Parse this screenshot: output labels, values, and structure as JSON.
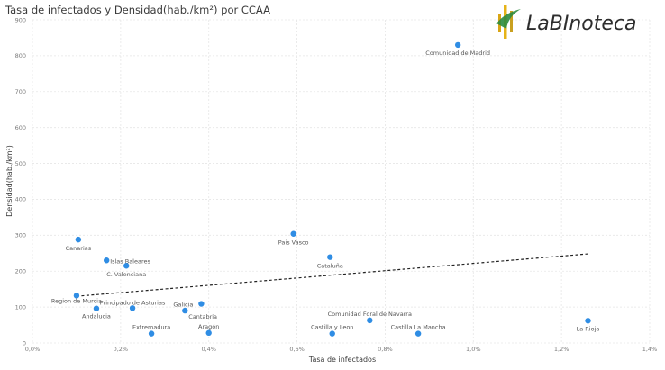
{
  "chart_data": {
    "type": "scatter",
    "title": "Tasa de infectados y Densidad(hab./km²) por CCAA",
    "xlabel": "Tasa de infectados",
    "ylabel": "Densidad(hab./km²)",
    "xlim": [
      0,
      1.4
    ],
    "ylim": [
      0,
      900
    ],
    "x_unit": "%",
    "x_ticks": [
      "0,0%",
      "0,2%",
      "0,4%",
      "0,6%",
      "0,8%",
      "1,0%",
      "1,2%",
      "1,4%"
    ],
    "y_ticks": [
      "0",
      "100",
      "200",
      "300",
      "400",
      "500",
      "600",
      "700",
      "800",
      "900"
    ],
    "grid": true,
    "point_color": "#2f8de4",
    "trendline": {
      "style": "dashed",
      "x": [
        0.1,
        1.26
      ],
      "y": [
        130,
        248
      ]
    },
    "points": [
      {
        "label": "Comunidad de Madrid",
        "x": 0.965,
        "y": 830
      },
      {
        "label": "Pais Vasco",
        "x": 0.592,
        "y": 304
      },
      {
        "label": "Canarias",
        "x": 0.104,
        "y": 288
      },
      {
        "label": "Cataluña",
        "x": 0.675,
        "y": 239
      },
      {
        "label": "Islas Baleares",
        "x": 0.168,
        "y": 230
      },
      {
        "label": "C. Valenciana",
        "x": 0.213,
        "y": 215
      },
      {
        "label": "Region de Murcia",
        "x": 0.1,
        "y": 132
      },
      {
        "label": "Andalucia",
        "x": 0.145,
        "y": 96
      },
      {
        "label": "Principado de Asturias",
        "x": 0.227,
        "y": 97
      },
      {
        "label": "Galicia",
        "x": 0.383,
        "y": 109
      },
      {
        "label": "Cantabria",
        "x": 0.346,
        "y": 90
      },
      {
        "label": "Extremadura",
        "x": 0.27,
        "y": 26
      },
      {
        "label": "Aragón",
        "x": 0.4,
        "y": 28
      },
      {
        "label": "Comunidad Foral de Navarra",
        "x": 0.765,
        "y": 63
      },
      {
        "label": "Castilla y Leon",
        "x": 0.68,
        "y": 26
      },
      {
        "label": "Castilla La Mancha",
        "x": 0.875,
        "y": 26
      },
      {
        "label": "La Rioja",
        "x": 1.26,
        "y": 62
      }
    ]
  },
  "logo": {
    "text": "LaBInoteca"
  }
}
